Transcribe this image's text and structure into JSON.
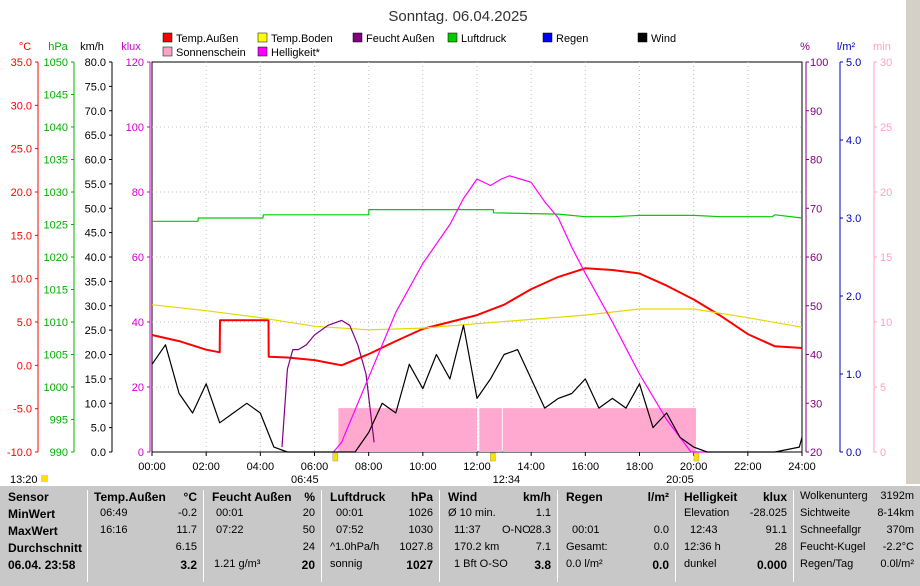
{
  "chart_data": {
    "type": "line",
    "title": "Sonntag. 06.04.2025",
    "x_range": [
      "00:00",
      "24:00"
    ],
    "x_ticks": [
      "00:00",
      "02:00",
      "04:00",
      "06:00",
      "08:00",
      "10:00",
      "12:00",
      "14:00",
      "16:00",
      "18:00",
      "20:00",
      "22:00",
      "24:00"
    ],
    "left_axes": [
      {
        "unit": "°C",
        "color": "#ff0000",
        "ticks": [
          "35.0",
          "30.0",
          "25.0",
          "20.0",
          "15.0",
          "10.0",
          "5.0",
          "0.0",
          "-5.0",
          "-10.0"
        ]
      },
      {
        "unit": "hPa",
        "color": "#00b000",
        "ticks": [
          "1050",
          "1045",
          "1040",
          "1035",
          "1030",
          "1025",
          "1020",
          "1015",
          "1010",
          "1005",
          "1000",
          "995",
          "990"
        ]
      },
      {
        "unit": "km/h",
        "color": "#000000",
        "ticks": [
          "80.0",
          "75.0",
          "70.0",
          "65.0",
          "60.0",
          "55.0",
          "50.0",
          "45.0",
          "40.0",
          "35.0",
          "30.0",
          "25.0",
          "20.0",
          "15.0",
          "10.0",
          "5.0",
          "0.0"
        ]
      },
      {
        "unit": "klux",
        "color": "#d000d0",
        "ticks": [
          "120",
          "100",
          "80",
          "60",
          "40",
          "20",
          "0"
        ]
      }
    ],
    "right_axes": [
      {
        "unit": "%",
        "color": "#800080",
        "ticks": [
          "100",
          "90",
          "80",
          "70",
          "60",
          "50",
          "40",
          "30",
          "20"
        ]
      },
      {
        "unit": "l/m²",
        "color": "#0000c0",
        "ticks": [
          "5.0",
          "4.0",
          "3.0",
          "2.0",
          "1.0",
          "0.0"
        ]
      },
      {
        "unit": "min",
        "color": "#ffa0c8",
        "ticks": [
          "30",
          "25",
          "20",
          "15",
          "10",
          "5",
          "0"
        ]
      }
    ],
    "legend": [
      {
        "name": "Temp.Außen",
        "color": "#ff0000"
      },
      {
        "name": "Temp.Boden",
        "color": "#ffff00"
      },
      {
        "name": "Feucht Außen",
        "color": "#800080"
      },
      {
        "name": "Luftdruck",
        "color": "#00cc00"
      },
      {
        "name": "Regen",
        "color": "#0000ff"
      },
      {
        "name": "Wind",
        "color": "#000000"
      },
      {
        "name": "Sonnenschein",
        "color": "#ffa0c8"
      },
      {
        "name": "Helligkeit*",
        "color": "#ff00ff"
      }
    ],
    "series": [
      {
        "name": "Temp.Außen",
        "axis": "°C",
        "x": [
          0,
          1,
          2,
          2.5,
          2.51,
          4.3,
          4.31,
          5,
          6,
          7,
          8,
          9,
          10,
          11,
          12,
          13,
          14,
          15,
          16,
          17,
          18,
          19,
          20,
          21,
          22,
          23,
          24
        ],
        "y": [
          3.5,
          2.8,
          1.8,
          1.5,
          5.2,
          5.2,
          1.0,
          0.9,
          0.6,
          0.0,
          1.3,
          2.8,
          4.2,
          5.0,
          5.8,
          7.0,
          8.8,
          10.2,
          11.2,
          11.0,
          10.6,
          9.2,
          7.6,
          5.7,
          3.6,
          2.2,
          2.0
        ]
      },
      {
        "name": "Temp.Boden",
        "axis": "°C",
        "x": [
          0,
          2,
          4,
          6,
          8,
          10,
          12,
          14,
          16,
          18,
          20,
          22,
          24
        ],
        "y": [
          7.0,
          6.3,
          5.5,
          4.5,
          4.1,
          4.3,
          4.8,
          5.3,
          5.8,
          6.5,
          6.5,
          5.5,
          4.4
        ]
      },
      {
        "name": "Luftdruck",
        "axis": "hPa",
        "x": [
          0,
          1.7,
          1.71,
          4.1,
          4.11,
          8,
          8.01,
          12.6,
          12.61,
          15,
          16,
          17,
          18,
          20,
          21,
          22,
          22.9,
          23,
          24
        ],
        "y": [
          1025.5,
          1025.5,
          1026,
          1026,
          1026.5,
          1026.5,
          1027.3,
          1027.3,
          1026.8,
          1026.6,
          1026.2,
          1026.2,
          1026.4,
          1026.4,
          1026.2,
          1026.2,
          1026.2,
          1026.5,
          1026
        ]
      },
      {
        "name": "Feucht Außen",
        "axis": "%",
        "x": [
          4.8,
          5.0,
          5.2,
          5.4,
          5.7,
          6.0,
          6.5,
          7.0,
          7.3,
          7.6,
          7.9,
          8.2
        ],
        "y": [
          21,
          37,
          41,
          41,
          42,
          44,
          46,
          47,
          46,
          42,
          36,
          22
        ]
      },
      {
        "name": "Helligkeit*",
        "axis": "klux",
        "x": [
          6.7,
          7.0,
          7.5,
          8,
          9,
          10,
          11,
          11.5,
          12,
          12.5,
          12.9,
          13.2,
          13.6,
          14,
          14.5,
          15,
          15.5,
          16,
          17,
          18,
          19,
          19.9,
          20.5
        ],
        "y": [
          0,
          3,
          13,
          23,
          43,
          58,
          70,
          78,
          84,
          82,
          84,
          85,
          84,
          83,
          77,
          72,
          63,
          55,
          40,
          24,
          10,
          0,
          0
        ]
      },
      {
        "name": "Wind",
        "axis": "km/h",
        "x": [
          0,
          0.5,
          1,
          1.5,
          2,
          2.5,
          3,
          3.5,
          4,
          4.5,
          5,
          6,
          7,
          7.5,
          8,
          8.5,
          9,
          9.5,
          10,
          10.5,
          11,
          11.5,
          12,
          12.5,
          13,
          13.5,
          14,
          14.5,
          15,
          15.5,
          16,
          16.5,
          17,
          17.5,
          18,
          18.5,
          19,
          19.5,
          20,
          20.5,
          21,
          22,
          23,
          23.9,
          24
        ],
        "y": [
          18,
          22,
          12,
          8,
          14,
          6,
          8,
          10,
          8,
          1,
          0,
          0,
          0,
          0,
          4,
          10,
          8,
          18,
          13,
          20,
          15,
          26,
          11,
          15,
          20,
          21,
          15,
          9,
          11,
          12,
          15,
          9,
          11,
          9,
          14,
          5,
          8,
          3,
          1,
          0,
          0,
          0,
          0,
          1,
          3
        ]
      }
    ],
    "sunshine_intervals": [
      [
        "06:53",
        "12:00"
      ],
      [
        "12:05",
        "12:55"
      ],
      [
        "12:57",
        "20:05"
      ]
    ],
    "rain": 0
  },
  "markers": {
    "left": "13:20",
    "sunrise": "06:45",
    "noon": "12:34",
    "sunset": "20:05"
  },
  "table": {
    "sensor": {
      "header": "Sensor",
      "rows": [
        "MinWert",
        "MaxWert",
        "Durchschnitt"
      ],
      "date": "06.04. 23:58"
    },
    "temp": {
      "header": "Temp.Außen",
      "unit": "°C",
      "rows": [
        [
          "06:49",
          "-0.2"
        ],
        [
          "16:16",
          "11.7"
        ],
        [
          "",
          "6.15"
        ]
      ],
      "current": "3.2"
    },
    "feucht": {
      "header": "Feucht Außen",
      "unit": "%",
      "rows": [
        [
          "00:01",
          "20"
        ],
        [
          "07:22",
          "50"
        ],
        [
          "",
          "24"
        ]
      ],
      "foot_left": "1.21 g/m³",
      "current": "20"
    },
    "druck": {
      "header": "Luftdruck",
      "unit": "hPa",
      "rows": [
        [
          "00:01",
          "1026"
        ],
        [
          "07:52",
          "1030"
        ],
        [
          "^1.0hPa/h",
          "1027.8"
        ]
      ],
      "foot_left": "sonnig",
      "current": "1027"
    },
    "wind": {
      "header": "Wind",
      "unit": "km/h",
      "rows": [
        [
          "Ø 10 min.",
          "",
          "1.1"
        ],
        [
          "11:37",
          "O-NO",
          "28.3"
        ],
        [
          "170.2 km",
          "",
          "7.1"
        ]
      ],
      "foot_left": "1 Bft O-SO",
      "current": "3.8"
    },
    "regen": {
      "header": "Regen",
      "unit": "l/m²",
      "rows": [
        [
          "",
          ""
        ],
        [
          "00:01",
          "0.0"
        ],
        [
          "Gesamt:",
          "0.0"
        ]
      ],
      "foot_left": "0.0 l/m²",
      "current": "0.0"
    },
    "hell": {
      "header": "Helligkeit",
      "unit": "klux",
      "rows": [
        [
          "Elevation",
          "-28.025"
        ],
        [
          "12:43",
          "91.1"
        ],
        [
          "12:36 h",
          "28"
        ]
      ],
      "foot_left": "dunkel",
      "current": "0.000"
    },
    "extra": {
      "rows": [
        [
          "Wolkenunterg",
          "3192m"
        ],
        [
          "Sichtweite",
          "8-14km"
        ],
        [
          "Schneefallgr",
          "370m"
        ],
        [
          "Feucht-Kugel",
          "-2.2°C"
        ],
        [
          "Regen/Tag",
          "0.0l/m²"
        ]
      ]
    }
  }
}
